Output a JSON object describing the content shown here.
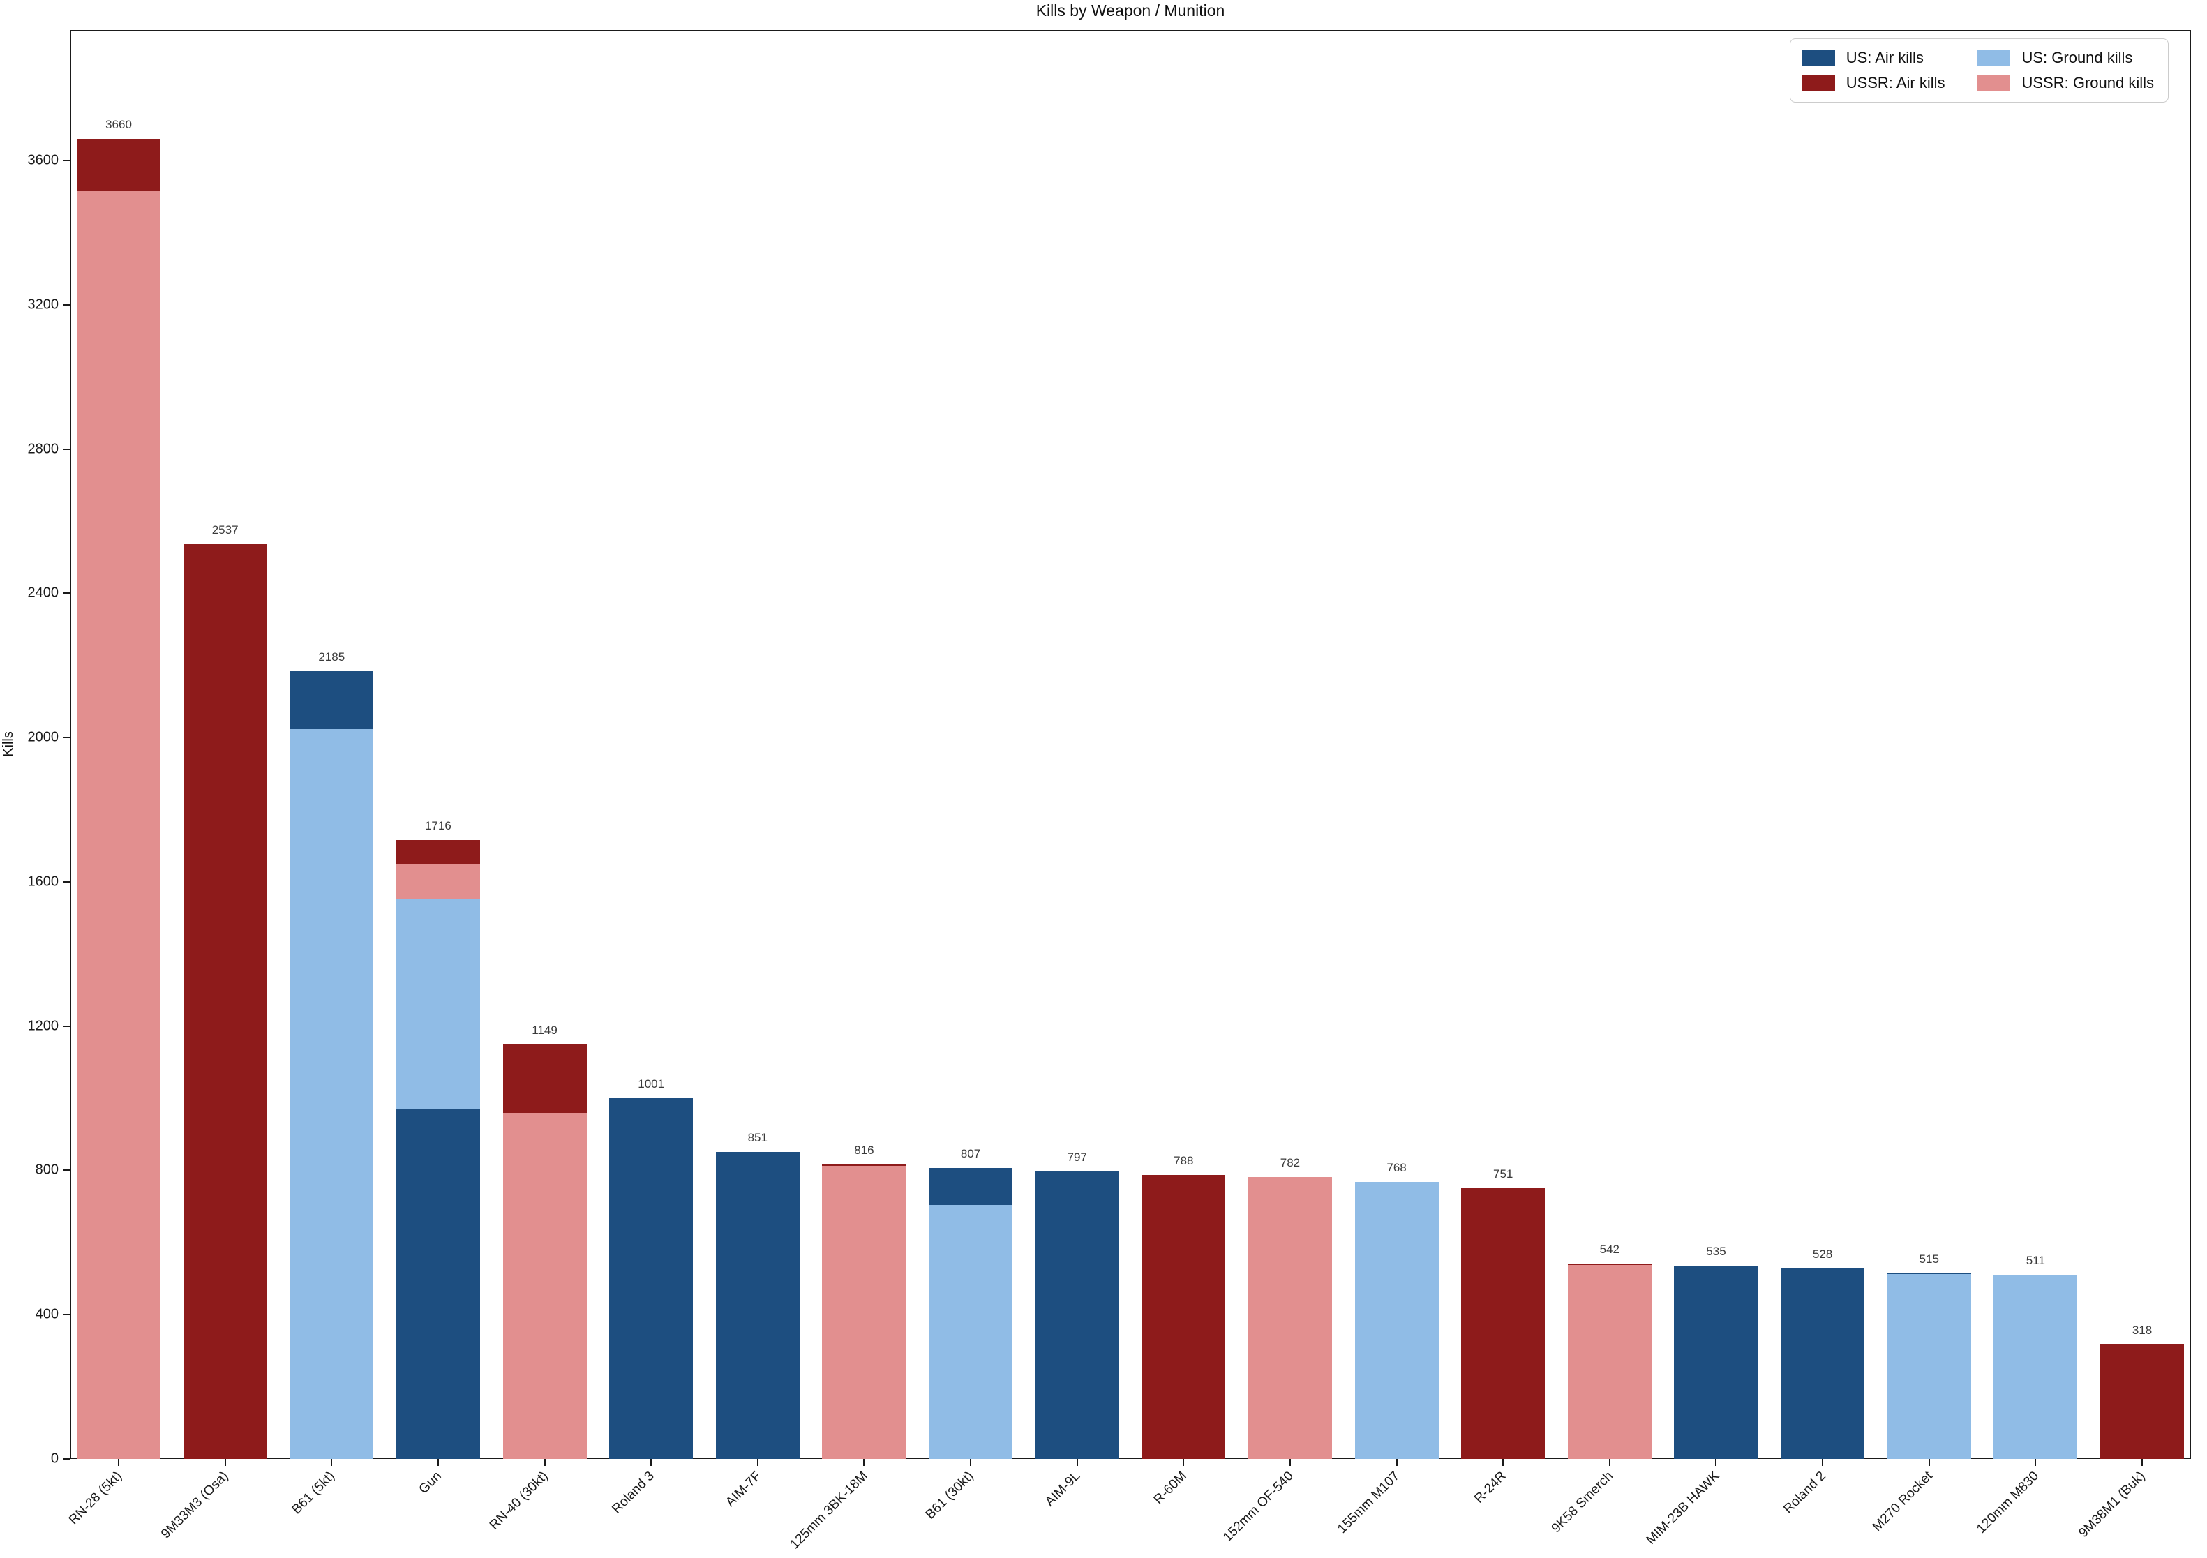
{
  "chart_data": {
    "type": "bar",
    "variant": "overlay-from-zero",
    "title": "Kills by Weapon / Munition",
    "ylabel": "Kills",
    "xlabel": "",
    "ymax": 3962,
    "yticks": [
      0,
      400,
      800,
      1200,
      1600,
      2000,
      2400,
      2800,
      3200,
      3600
    ],
    "grid": false,
    "legend_position": "upper-right",
    "categories": [
      "RN-28 (5kt)",
      "9M33M3 (Osa)",
      "B61 (5kt)",
      "Gun",
      "RN-40 (30kt)",
      "Roland 3",
      "AIM-7F",
      "125mm 3BK-18M",
      "B61 (30kt)",
      "AIM-9L",
      "R-60M",
      "152mm OF-540",
      "155mm M107",
      "R-24R",
      "9K58 Smerch",
      "MIM-23B HAWK",
      "Roland 2",
      "M270 Rocket",
      "120mm M830",
      "9M38M1 (Buk)"
    ],
    "series": [
      {
        "key": "us_air",
        "name": "US: Air kills",
        "color": "#1d4e80",
        "values": [
          0,
          0,
          2185,
          970,
          0,
          1001,
          851,
          0,
          807,
          797,
          0,
          0,
          0,
          0,
          0,
          535,
          528,
          515,
          0,
          0
        ]
      },
      {
        "key": "ussr_air",
        "name": "USSR: Air kills",
        "color": "#8e1b1b",
        "values": [
          3660,
          2537,
          0,
          1716,
          1149,
          0,
          0,
          816,
          0,
          0,
          788,
          0,
          0,
          751,
          542,
          0,
          0,
          0,
          0,
          318
        ]
      },
      {
        "key": "us_ground",
        "name": "US: Ground kills",
        "color": "#90bce6",
        "values": [
          0,
          0,
          2023,
          1553,
          0,
          0,
          0,
          0,
          705,
          0,
          0,
          0,
          768,
          0,
          0,
          0,
          0,
          512,
          511,
          0
        ]
      },
      {
        "key": "ussr_ground",
        "name": "USSR: Ground kills",
        "color": "#e28f8f",
        "values": [
          3515,
          0,
          0,
          1650,
          960,
          0,
          0,
          812,
          0,
          0,
          0,
          782,
          0,
          0,
          538,
          0,
          0,
          0,
          0,
          0
        ]
      }
    ],
    "legend_order": [
      "us_air",
      "us_ground",
      "ussr_air",
      "ussr_ground"
    ],
    "bar_labels": [
      "3660",
      "2537",
      "2185",
      "1716",
      "1149",
      "1001",
      "851",
      "816",
      "807",
      "797",
      "788",
      "782",
      "768",
      "751",
      "542",
      "535",
      "528",
      "515",
      "511",
      "318"
    ],
    "axis_color": "#1a1a1a",
    "value_label_color": "#3a3a3a"
  },
  "layout_text": {
    "title": "Kills by Weapon / Munition",
    "ylabel": "Kills"
  }
}
